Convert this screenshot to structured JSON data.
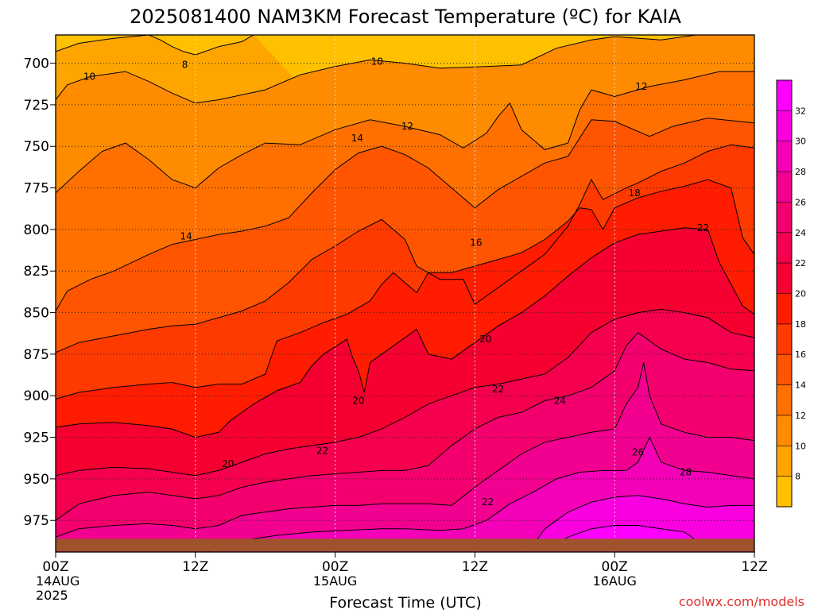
{
  "chart_data": {
    "type": "heatmap",
    "title": "2025081400 NAM3KM Forecast Temperature (ºC) for KAIA",
    "xlabel": "Forecast Time (UTC)",
    "ylabel": "",
    "x_ticks": [
      {
        "hour": 0,
        "lines": [
          "00Z",
          "14AUG",
          "2025"
        ]
      },
      {
        "hour": 12,
        "lines": [
          "12Z"
        ]
      },
      {
        "hour": 24,
        "lines": [
          "00Z",
          "15AUG"
        ]
      },
      {
        "hour": 36,
        "lines": [
          "12Z"
        ]
      },
      {
        "hour": 48,
        "lines": [
          "00Z",
          "16AUG"
        ]
      },
      {
        "hour": 60,
        "lines": [
          "12Z"
        ]
      }
    ],
    "xlim": [
      0,
      60
    ],
    "y_ticks": [
      700,
      725,
      750,
      775,
      800,
      825,
      850,
      875,
      900,
      925,
      950,
      975
    ],
    "ylim_hpa": [
      683,
      994
    ],
    "ground_pressure_hpa": 986,
    "colorbar": {
      "labels": [
        "8",
        "10",
        "12",
        "14",
        "16",
        "18",
        "20",
        "22",
        "24",
        "26",
        "28",
        "30",
        "32"
      ],
      "colors": [
        "#ffc000",
        "#ffa500",
        "#ff8c00",
        "#ff7000",
        "#ff5500",
        "#ff3a00",
        "#ff1c00",
        "#f50030",
        "#f5004e",
        "#f3006e",
        "#f20090",
        "#f400b8",
        "#fa00e0",
        "#ff00ff"
      ]
    },
    "ground_color": "#a0522d",
    "contour_labels": [
      {
        "text": "8",
        "hour": 11.1,
        "hpa": 701
      },
      {
        "text": "10",
        "hour": 2.9,
        "hpa": 708
      },
      {
        "text": "10",
        "hour": 27.6,
        "hpa": 699
      },
      {
        "text": "12",
        "hour": 30.2,
        "hpa": 738
      },
      {
        "text": "12",
        "hour": 50.3,
        "hpa": 714
      },
      {
        "text": "14",
        "hour": 25.9,
        "hpa": 745
      },
      {
        "text": "14",
        "hour": 11.2,
        "hpa": 804
      },
      {
        "text": "16",
        "hour": 36.1,
        "hpa": 808
      },
      {
        "text": "18",
        "hour": 49.7,
        "hpa": 778
      },
      {
        "text": "22",
        "hour": 55.6,
        "hpa": 799
      },
      {
        "text": "20",
        "hour": 36.9,
        "hpa": 866
      },
      {
        "text": "22",
        "hour": 38.0,
        "hpa": 896
      },
      {
        "text": "20",
        "hour": 26.0,
        "hpa": 903
      },
      {
        "text": "24",
        "hour": 43.3,
        "hpa": 903
      },
      {
        "text": "22",
        "hour": 22.9,
        "hpa": 933
      },
      {
        "text": "26",
        "hour": 50.0,
        "hpa": 934
      },
      {
        "text": "20",
        "hour": 14.8,
        "hpa": 941
      },
      {
        "text": "28",
        "hour": 54.1,
        "hpa": 946
      },
      {
        "text": "22",
        "hour": 37.1,
        "hpa": 964
      }
    ]
  },
  "credit": "coolwx.com/models"
}
